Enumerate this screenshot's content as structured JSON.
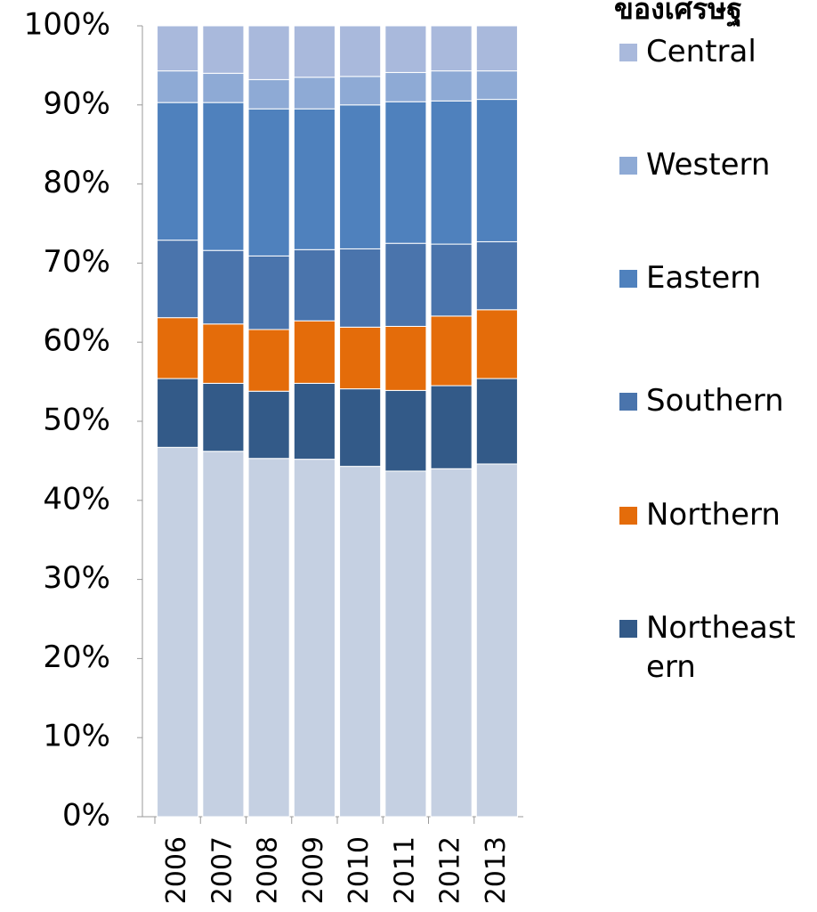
{
  "chart_data": {
    "type": "stacked-bar",
    "title": "ของเศรษฐ",
    "categories": [
      "2006",
      "2007",
      "2008",
      "2009",
      "2010",
      "2011",
      "2012",
      "2013"
    ],
    "series": [
      {
        "color": "#c5d0e2",
        "values": [
          46.7,
          46.2,
          45.3,
          45.2,
          44.3,
          43.7,
          44.0,
          44.6
        ]
      },
      {
        "name": "Northeastern",
        "color": "#335a88",
        "values": [
          8.7,
          8.6,
          8.5,
          9.6,
          9.8,
          10.2,
          10.5,
          10.8
        ]
      },
      {
        "name": "Northern",
        "color": "#e46c0a",
        "values": [
          7.7,
          7.5,
          7.8,
          7.9,
          7.8,
          8.1,
          8.8,
          8.7
        ]
      },
      {
        "name": "Southern",
        "color": "#4a74ac",
        "values": [
          9.8,
          9.3,
          9.3,
          9.0,
          9.9,
          10.5,
          9.1,
          8.6
        ]
      },
      {
        "name": "Eastern",
        "color": "#4f81bd",
        "values": [
          17.4,
          18.7,
          18.6,
          17.8,
          18.2,
          17.9,
          18.1,
          18.0
        ]
      },
      {
        "name": "Western",
        "color": "#8eaad5",
        "values": [
          4.0,
          3.7,
          3.7,
          4.0,
          3.6,
          3.7,
          3.8,
          3.6
        ]
      },
      {
        "name": "Central",
        "color": "#a9b9dc",
        "values": [
          5.7,
          6.0,
          6.8,
          6.5,
          6.4,
          5.9,
          5.7,
          5.7
        ]
      }
    ],
    "ylim": [
      0,
      100
    ],
    "yticks": [
      {
        "value": 0,
        "label": "0%"
      },
      {
        "value": 10,
        "label": "10%"
      },
      {
        "value": 20,
        "label": "20%"
      },
      {
        "value": 30,
        "label": "30%"
      },
      {
        "value": 40,
        "label": "40%"
      },
      {
        "value": 50,
        "label": "50%"
      },
      {
        "value": 60,
        "label": "60%"
      },
      {
        "value": 70,
        "label": "70%"
      },
      {
        "value": 80,
        "label": "80%"
      },
      {
        "value": 90,
        "label": "90%"
      },
      {
        "value": 100,
        "label": "100%"
      }
    ],
    "legend": "right"
  }
}
